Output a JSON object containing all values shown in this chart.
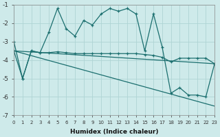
{
  "xlabel": "Humidex (Indice chaleur)",
  "background_color": "#ceeaea",
  "grid_color": "#aed4d4",
  "line_color": "#1a6e6e",
  "xlim": [
    0,
    23
  ],
  "ylim": [
    -7,
    -1
  ],
  "yticks": [
    -7,
    -6,
    -5,
    -4,
    -3,
    -2,
    -1
  ],
  "xticks": [
    0,
    1,
    2,
    3,
    4,
    5,
    6,
    7,
    8,
    9,
    10,
    11,
    12,
    13,
    14,
    15,
    16,
    17,
    18,
    19,
    20,
    21,
    22,
    23
  ],
  "series": [
    {
      "x": [
        0,
        1,
        2,
        3,
        4,
        5,
        6,
        7,
        8,
        9,
        10,
        11,
        12,
        13,
        14,
        15,
        16,
        17,
        18,
        19,
        20,
        21,
        22,
        23
      ],
      "y": [
        -3.0,
        -5.0,
        -3.5,
        -3.6,
        -2.5,
        -1.2,
        -2.3,
        -2.7,
        -1.85,
        -2.1,
        -1.5,
        -1.2,
        -1.35,
        -1.2,
        -1.5,
        -3.5,
        -1.5,
        -3.3,
        -5.8,
        -5.5,
        -5.9,
        -5.9,
        -6.0,
        -4.2
      ],
      "marker": true
    },
    {
      "x": [
        0,
        1,
        2,
        3,
        4,
        5,
        6,
        7,
        8,
        9,
        10,
        11,
        12,
        13,
        14,
        15,
        16,
        17,
        18,
        19,
        20,
        21,
        22,
        23
      ],
      "y": [
        -3.5,
        -5.0,
        -3.5,
        -3.6,
        -3.6,
        -3.55,
        -3.6,
        -3.65,
        -3.65,
        -3.65,
        -3.65,
        -3.65,
        -3.65,
        -3.65,
        -3.65,
        -3.7,
        -3.75,
        -3.85,
        -4.1,
        -3.9,
        -3.9,
        -3.9,
        -3.9,
        -4.2
      ],
      "marker": true
    },
    {
      "x": [
        0,
        23
      ],
      "y": [
        -3.5,
        -6.5
      ],
      "marker": false
    },
    {
      "x": [
        0,
        23
      ],
      "y": [
        -3.5,
        -4.2
      ],
      "marker": false
    }
  ]
}
